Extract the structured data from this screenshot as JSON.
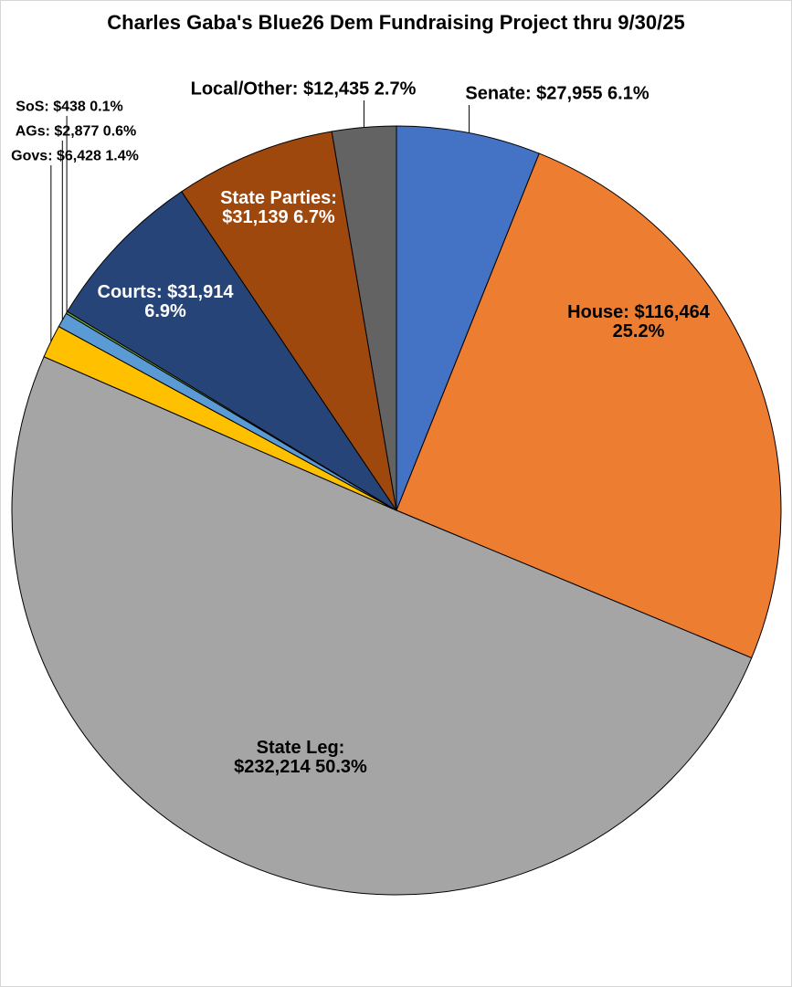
{
  "canvas": {
    "background": "#FFFFFF",
    "border_color": "#D6D6D6"
  },
  "chart_data": {
    "type": "pie",
    "title": "Charles Gaba's Blue26 Dem Fundraising Project thru 9/30/25",
    "legend": "none",
    "grid": false,
    "start_angle_deg": 0,
    "direction": "clockwise",
    "slices": [
      {
        "name": "Senate",
        "value": 27955,
        "percent": 6.1,
        "amount_text": "$27,955",
        "color": "#4472C4",
        "label": "Senate: $27,955 6.1%",
        "label_placement": "outside",
        "label_color": "#000000",
        "leader_line": true
      },
      {
        "name": "House",
        "value": 116464,
        "percent": 25.2,
        "amount_text": "$116,464",
        "color": "#ED7D31",
        "label": "House: $116,464\n25.2%",
        "label_placement": "inside",
        "label_color": "#000000",
        "leader_line": false
      },
      {
        "name": "State Leg",
        "value": 232214,
        "percent": 50.3,
        "amount_text": "$232,214",
        "color": "#A5A5A5",
        "label": "State Leg:\n$232,214 50.3%",
        "label_placement": "inside",
        "label_color": "#000000",
        "leader_line": false
      },
      {
        "name": "Govs",
        "value": 6428,
        "percent": 1.4,
        "amount_text": "$6,428",
        "color": "#FFC000",
        "label": "Govs: $6,428 1.4%",
        "label_placement": "outside",
        "label_color": "#000000",
        "leader_line": true
      },
      {
        "name": "AGs",
        "value": 2877,
        "percent": 0.6,
        "amount_text": "$2,877",
        "color": "#5B9BD5",
        "label": "AGs: $2,877 0.6%",
        "label_placement": "outside",
        "label_color": "#000000",
        "leader_line": true
      },
      {
        "name": "SoS",
        "value": 438,
        "percent": 0.1,
        "amount_text": "$438",
        "color": "#70AD47",
        "label": "SoS: $438 0.1%",
        "label_placement": "outside",
        "label_color": "#000000",
        "leader_line": true
      },
      {
        "name": "Courts",
        "value": 31914,
        "percent": 6.9,
        "amount_text": "$31,914",
        "color": "#264478",
        "label": "Courts: $31,914\n6.9%",
        "label_placement": "inside",
        "label_color": "#FFFFFF",
        "leader_line": false
      },
      {
        "name": "State Parties",
        "value": 31139,
        "percent": 6.7,
        "amount_text": "$31,139",
        "color": "#9E480E",
        "label": "State Parties:\n$31,139 6.7%",
        "label_placement": "inside",
        "label_color": "#FFFFFF",
        "leader_line": false
      },
      {
        "name": "Local/Other",
        "value": 12435,
        "percent": 2.7,
        "amount_text": "$12,435",
        "color": "#636363",
        "label": "Local/Other: $12,435 2.7%",
        "label_placement": "outside",
        "label_color": "#000000",
        "leader_line": true
      }
    ],
    "slice_outline_color": "#000000",
    "layout": {
      "center": [
        433,
        558
      ],
      "radius": 421,
      "leader_label_bottom": {
        "Senate": 114,
        "Local/Other": 109,
        "SoS": 126,
        "AGs": 153,
        "Govs": 180
      }
    }
  }
}
